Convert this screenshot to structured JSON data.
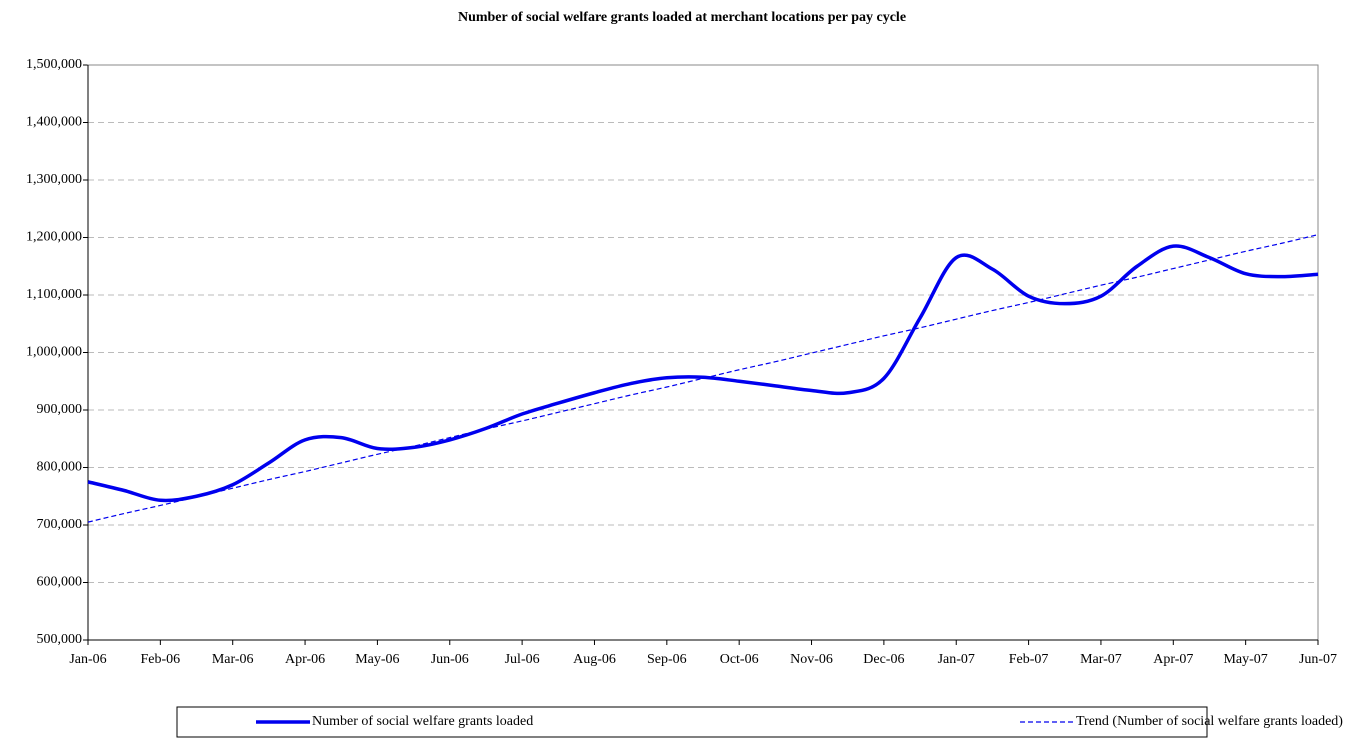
{
  "chart_data": {
    "type": "line",
    "title": "Number of social welfare grants loaded at merchant locations per pay cycle",
    "categories": [
      "Jan-06",
      null,
      "Feb-06",
      null,
      "Mar-06",
      null,
      "Apr-06",
      null,
      "May-06",
      null,
      "Jun-06",
      null,
      "Jul-06",
      null,
      "Aug-06",
      null,
      "Sep-06",
      null,
      "Oct-06",
      null,
      "Nov-06",
      null,
      "Dec-06",
      null,
      "Jan-07",
      null,
      "Feb-07",
      null,
      "Mar-07",
      null,
      "Apr-07",
      null,
      "May-07",
      null,
      "Jun-07"
    ],
    "series": [
      {
        "name": "Number of social welfare grants loaded",
        "color": "#0000ee",
        "style": "solid",
        "values": [
          775000,
          760000,
          743000,
          750000,
          770000,
          808000,
          848000,
          852000,
          833000,
          835000,
          848000,
          868000,
          893000,
          912000,
          930000,
          946000,
          956000,
          957000,
          950000,
          942000,
          934000,
          930000,
          955000,
          1060000,
          1165000,
          1145000,
          1098000,
          1085000,
          1098000,
          1150000,
          1185000,
          1165000,
          1137000,
          1132000,
          1136000
        ]
      },
      {
        "name": "Trend (Number of social welfare grants loaded)",
        "color": "#0000ee",
        "style": "dashed",
        "values": [
          705000,
          720000,
          734000,
          749000,
          764000,
          779000,
          793000,
          808000,
          823000,
          837000,
          852000,
          867000,
          881000,
          896000,
          911000,
          926000,
          940000,
          955000,
          970000,
          984000,
          999000,
          1014000,
          1029000,
          1043000,
          1058000,
          1073000,
          1087000,
          1102000,
          1117000,
          1131000,
          1146000,
          1161000,
          1176000,
          1190000,
          1205000
        ]
      }
    ],
    "ylim": [
      500000,
      1500000
    ],
    "yticks": [
      {
        "value": 500000,
        "label": "500,000"
      },
      {
        "value": 600000,
        "label": "600,000"
      },
      {
        "value": 700000,
        "label": "700,000"
      },
      {
        "value": 800000,
        "label": "800,000"
      },
      {
        "value": 900000,
        "label": "900,000"
      },
      {
        "value": 1000000,
        "label": "1,000,000"
      },
      {
        "value": 1100000,
        "label": "1,100,000"
      },
      {
        "value": 1200000,
        "label": "1,200,000"
      },
      {
        "value": 1300000,
        "label": "1,300,000"
      },
      {
        "value": 1400000,
        "label": "1,400,000"
      },
      {
        "value": 1500000,
        "label": "1,500,000"
      }
    ],
    "grid": true,
    "legend": "bottom"
  }
}
